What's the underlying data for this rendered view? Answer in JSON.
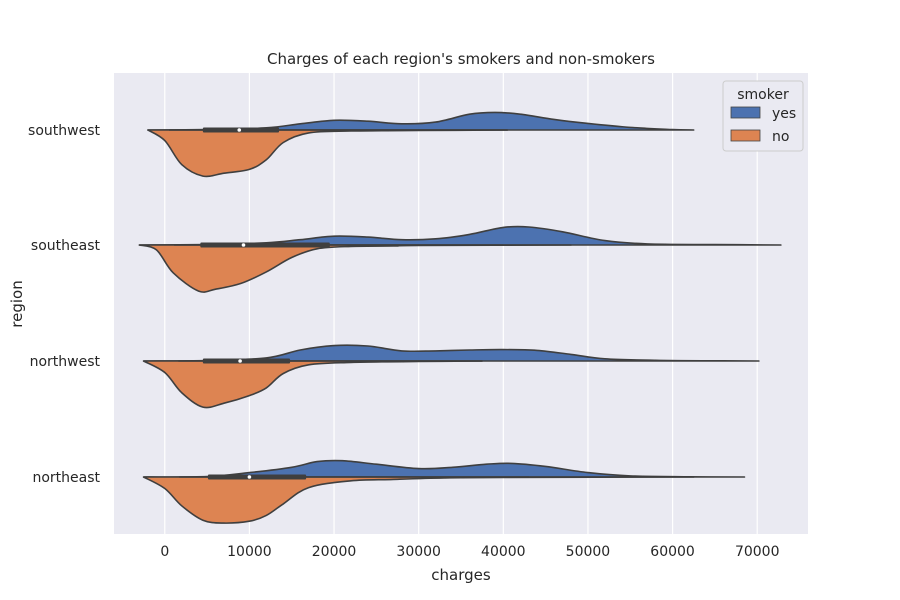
{
  "chart_data": {
    "type": "violin",
    "orientation": "horizontal",
    "split": true,
    "title": "Charges of each region's smokers and non-smokers",
    "xlabel": "charges",
    "ylabel": "region",
    "xlim": [
      -6000,
      76000
    ],
    "xticks": [
      0,
      10000,
      20000,
      30000,
      40000,
      50000,
      60000,
      70000
    ],
    "xtick_labels": [
      "0",
      "10000",
      "20000",
      "30000",
      "40000",
      "50000",
      "60000",
      "70000"
    ],
    "categories": [
      "southwest",
      "southeast",
      "northwest",
      "northeast"
    ],
    "grid": true,
    "legend": {
      "title": "smoker",
      "placement": "top-right",
      "entries": [
        {
          "label": "yes",
          "color": "#4c72b0"
        },
        {
          "label": "no",
          "color": "#dd8452"
        }
      ]
    },
    "series": [
      {
        "name": "yes",
        "color": "#4c72b0",
        "side": "upper",
        "violins": [
          {
            "region": "southwest",
            "min": -2000,
            "max": 62500,
            "profile": [
              [
                -2000,
                0.0
              ],
              [
                5000,
                0.02
              ],
              [
                12000,
                0.1
              ],
              [
                16000,
                0.28
              ],
              [
                20000,
                0.44
              ],
              [
                24000,
                0.4
              ],
              [
                28000,
                0.28
              ],
              [
                32000,
                0.36
              ],
              [
                36000,
                0.72
              ],
              [
                39000,
                0.8
              ],
              [
                42000,
                0.72
              ],
              [
                46000,
                0.48
              ],
              [
                50000,
                0.3
              ],
              [
                55000,
                0.12
              ],
              [
                60000,
                0.02
              ],
              [
                62500,
                0.0
              ]
            ]
          },
          {
            "region": "southeast",
            "min": -3000,
            "max": 72800,
            "profile": [
              [
                -3000,
                0.0
              ],
              [
                5000,
                0.02
              ],
              [
                12000,
                0.1
              ],
              [
                16000,
                0.24
              ],
              [
                20000,
                0.4
              ],
              [
                24000,
                0.36
              ],
              [
                28000,
                0.24
              ],
              [
                32000,
                0.28
              ],
              [
                36000,
                0.48
              ],
              [
                40000,
                0.8
              ],
              [
                43000,
                0.82
              ],
              [
                47000,
                0.6
              ],
              [
                52000,
                0.2
              ],
              [
                57000,
                0.05
              ],
              [
                65000,
                0.02
              ],
              [
                72800,
                0.0
              ]
            ]
          },
          {
            "region": "northwest",
            "min": -2500,
            "max": 70200,
            "profile": [
              [
                -2500,
                0.0
              ],
              [
                5000,
                0.02
              ],
              [
                12000,
                0.14
              ],
              [
                16000,
                0.5
              ],
              [
                20000,
                0.7
              ],
              [
                24000,
                0.68
              ],
              [
                28000,
                0.46
              ],
              [
                32000,
                0.46
              ],
              [
                36000,
                0.5
              ],
              [
                40000,
                0.52
              ],
              [
                44000,
                0.48
              ],
              [
                48000,
                0.3
              ],
              [
                52000,
                0.1
              ],
              [
                58000,
                0.03
              ],
              [
                65000,
                0.01
              ],
              [
                70200,
                0.0
              ]
            ]
          },
          {
            "region": "northeast",
            "min": -2500,
            "max": 68500,
            "profile": [
              [
                -2500,
                0.0
              ],
              [
                5000,
                0.02
              ],
              [
                10000,
                0.2
              ],
              [
                15000,
                0.44
              ],
              [
                18000,
                0.7
              ],
              [
                21000,
                0.74
              ],
              [
                25000,
                0.58
              ],
              [
                30000,
                0.38
              ],
              [
                34000,
                0.44
              ],
              [
                38000,
                0.58
              ],
              [
                41000,
                0.62
              ],
              [
                45000,
                0.48
              ],
              [
                50000,
                0.2
              ],
              [
                55000,
                0.05
              ],
              [
                62000,
                0.01
              ],
              [
                68500,
                0.0
              ]
            ]
          }
        ]
      },
      {
        "name": "no",
        "color": "#dd8452",
        "side": "lower",
        "violins": [
          {
            "region": "southwest",
            "min": -2000,
            "max": 40500,
            "profile": [
              [
                -2000,
                0.0
              ],
              [
                0,
                0.22
              ],
              [
                2000,
                0.72
              ],
              [
                4500,
                0.96
              ],
              [
                7000,
                0.9
              ],
              [
                10000,
                0.82
              ],
              [
                12000,
                0.62
              ],
              [
                14000,
                0.26
              ],
              [
                17000,
                0.06
              ],
              [
                22000,
                0.02
              ],
              [
                30000,
                0.01
              ],
              [
                40500,
                0.0
              ]
            ]
          },
          {
            "region": "southeast",
            "min": -3000,
            "max": 48000,
            "profile": [
              [
                -3000,
                0.0
              ],
              [
                -1000,
                0.1
              ],
              [
                1000,
                0.58
              ],
              [
                4000,
                0.96
              ],
              [
                6000,
                0.92
              ],
              [
                9000,
                0.8
              ],
              [
                12000,
                0.56
              ],
              [
                15000,
                0.26
              ],
              [
                18000,
                0.08
              ],
              [
                22000,
                0.03
              ],
              [
                27000,
                0.02
              ],
              [
                30000,
                0.01
              ],
              [
                48000,
                0.0
              ]
            ]
          },
          {
            "region": "northwest",
            "min": -2500,
            "max": 37500,
            "profile": [
              [
                -2500,
                0.0
              ],
              [
                0,
                0.24
              ],
              [
                2000,
                0.66
              ],
              [
                4500,
                0.96
              ],
              [
                7000,
                0.88
              ],
              [
                10000,
                0.72
              ],
              [
                12000,
                0.56
              ],
              [
                14000,
                0.26
              ],
              [
                17000,
                0.08
              ],
              [
                22000,
                0.03
              ],
              [
                30000,
                0.01
              ],
              [
                37500,
                0.0
              ]
            ]
          },
          {
            "region": "northeast",
            "min": -2500,
            "max": 62500,
            "profile": [
              [
                -2500,
                0.0
              ],
              [
                0,
                0.24
              ],
              [
                2000,
                0.6
              ],
              [
                4500,
                0.9
              ],
              [
                7000,
                0.96
              ],
              [
                10000,
                0.92
              ],
              [
                12000,
                0.8
              ],
              [
                14000,
                0.56
              ],
              [
                17000,
                0.22
              ],
              [
                22000,
                0.08
              ],
              [
                27000,
                0.05
              ],
              [
                33000,
                0.02
              ],
              [
                40000,
                0.01
              ],
              [
                62500,
                0.0
              ]
            ]
          }
        ]
      }
    ],
    "boxes": [
      {
        "region": "southwest",
        "whisker": [
          500,
          40500
        ],
        "q1": 4500,
        "q3": 13500,
        "median": 8800
      },
      {
        "region": "southeast",
        "whisker": [
          1100,
          40000
        ],
        "q1": 4200,
        "q3": 19500,
        "median": 9300
      },
      {
        "region": "northwest",
        "whisker": [
          1600,
          37500
        ],
        "q1": 4500,
        "q3": 14800,
        "median": 8900
      },
      {
        "region": "northeast",
        "whisker": [
          1700,
          43000
        ],
        "q1": 5100,
        "q3": 16700,
        "median": 10000
      }
    ]
  }
}
